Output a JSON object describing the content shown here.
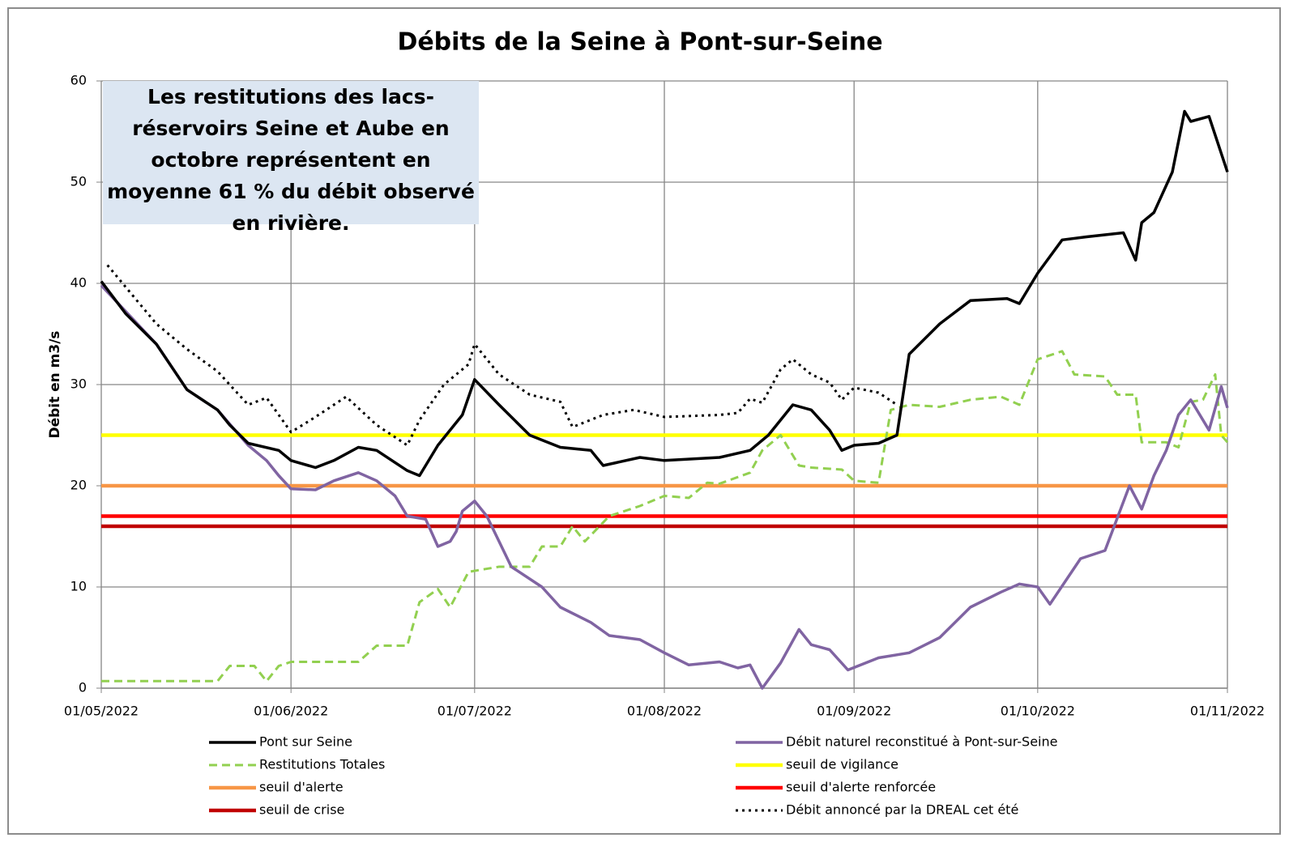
{
  "chart_data": {
    "type": "line",
    "title": "Débits de la Seine à Pont-sur-Seine",
    "y_label": "Débit en m3/s",
    "annotation": "Les restitutions des lacs-réservoirs Seine et Aube en octobre représentent en moyenne 61 % du débit observé en rivière.",
    "xlim": [
      "2022-05-01",
      "2022-11-01"
    ],
    "xticks": [
      {
        "value": "2022-05-01",
        "label": "01/05/2022"
      },
      {
        "value": "2022-06-01",
        "label": "01/06/2022"
      },
      {
        "value": "2022-07-01",
        "label": "01/07/2022"
      },
      {
        "value": "2022-08-01",
        "label": "01/08/2022"
      },
      {
        "value": "2022-09-01",
        "label": "01/09/2022"
      },
      {
        "value": "2022-10-01",
        "label": "01/10/2022"
      },
      {
        "value": "2022-11-01",
        "label": "01/11/2022"
      }
    ],
    "ylim": [
      0,
      60
    ],
    "yticks": [
      0,
      10,
      20,
      30,
      40,
      50,
      60
    ],
    "grid": true,
    "legend": "bottom",
    "series": [
      {
        "name": "Pont sur Seine",
        "color": "#000000",
        "dash": "solid",
        "x": [
          "2022-05-01",
          "2022-05-05",
          "2022-05-10",
          "2022-05-15",
          "2022-05-20",
          "2022-05-22",
          "2022-05-25",
          "2022-05-30",
          "2022-06-01",
          "2022-06-05",
          "2022-06-08",
          "2022-06-12",
          "2022-06-15",
          "2022-06-20",
          "2022-06-22",
          "2022-06-25",
          "2022-06-29",
          "2022-07-01",
          "2022-07-05",
          "2022-07-10",
          "2022-07-15",
          "2022-07-20",
          "2022-07-22",
          "2022-07-28",
          "2022-08-01",
          "2022-08-10",
          "2022-08-15",
          "2022-08-18",
          "2022-08-22",
          "2022-08-25",
          "2022-08-28",
          "2022-08-30",
          "2022-09-01",
          "2022-09-05",
          "2022-09-08",
          "2022-09-10",
          "2022-09-15",
          "2022-09-20",
          "2022-09-26",
          "2022-09-28",
          "2022-10-01",
          "2022-10-05",
          "2022-10-09",
          "2022-10-15",
          "2022-10-17",
          "2022-10-18",
          "2022-10-20",
          "2022-10-23",
          "2022-10-25",
          "2022-10-26",
          "2022-10-29",
          "2022-11-01"
        ],
        "values": [
          40.2,
          37,
          34,
          29.5,
          27.5,
          26,
          24.2,
          23.5,
          22.5,
          21.8,
          22.5,
          23.8,
          23.5,
          21.5,
          21,
          24,
          27,
          30.5,
          28,
          25,
          23.8,
          23.5,
          22,
          22.8,
          22.5,
          22.8,
          23.5,
          25,
          28,
          27.5,
          25.5,
          23.5,
          24,
          24.2,
          25,
          33,
          36,
          38.3,
          38.5,
          38,
          41,
          44.3,
          44.6,
          45,
          42.3,
          46,
          47,
          51,
          57,
          56,
          56.5,
          51
        ]
      },
      {
        "name": "Débit naturel reconstitué à Pont-sur-Seine",
        "color": "#8064a2",
        "dash": "solid",
        "x": [
          "2022-05-01",
          "2022-05-10",
          "2022-05-15",
          "2022-05-20",
          "2022-05-25",
          "2022-05-28",
          "2022-05-30",
          "2022-06-01",
          "2022-06-05",
          "2022-06-08",
          "2022-06-12",
          "2022-06-15",
          "2022-06-18",
          "2022-06-20",
          "2022-06-23",
          "2022-06-25",
          "2022-06-27",
          "2022-06-28",
          "2022-06-29",
          "2022-07-01",
          "2022-07-03",
          "2022-07-05",
          "2022-07-07",
          "2022-07-12",
          "2022-07-15",
          "2022-07-20",
          "2022-07-23",
          "2022-07-28",
          "2022-08-01",
          "2022-08-05",
          "2022-08-10",
          "2022-08-13",
          "2022-08-15",
          "2022-08-17",
          "2022-08-20",
          "2022-08-23",
          "2022-08-25",
          "2022-08-28",
          "2022-08-31",
          "2022-09-05",
          "2022-09-10",
          "2022-09-15",
          "2022-09-20",
          "2022-09-25",
          "2022-09-28",
          "2022-10-01",
          "2022-10-03",
          "2022-10-08",
          "2022-10-12",
          "2022-10-16",
          "2022-10-18",
          "2022-10-20",
          "2022-10-22",
          "2022-10-24",
          "2022-10-26",
          "2022-10-29",
          "2022-10-31",
          "2022-11-01"
        ],
        "values": [
          39.8,
          34,
          29.5,
          27.5,
          24,
          22.5,
          21,
          19.7,
          19.6,
          20.5,
          21.3,
          20.5,
          19,
          17,
          16.7,
          14,
          14.5,
          15.5,
          17.5,
          18.5,
          17,
          14.5,
          12,
          10,
          8,
          6.5,
          5.2,
          4.8,
          3.5,
          2.3,
          2.6,
          2,
          2.3,
          0,
          2.5,
          5.8,
          4.3,
          3.8,
          1.8,
          3,
          3.5,
          5,
          8,
          9.5,
          10.3,
          10,
          8.3,
          12.8,
          13.6,
          20,
          17.7,
          21,
          23.5,
          27,
          28.5,
          25.5,
          29.8,
          27.7
        ]
      },
      {
        "name": "Restitutions Totales",
        "color": "#92d050",
        "dash": "dashed",
        "x": [
          "2022-05-01",
          "2022-05-20",
          "2022-05-22",
          "2022-05-26",
          "2022-05-28",
          "2022-05-30",
          "2022-06-01",
          "2022-06-12",
          "2022-06-15",
          "2022-06-20",
          "2022-06-22",
          "2022-06-25",
          "2022-06-27",
          "2022-06-30",
          "2022-07-05",
          "2022-07-10",
          "2022-07-12",
          "2022-07-15",
          "2022-07-17",
          "2022-07-19",
          "2022-07-23",
          "2022-07-28",
          "2022-08-01",
          "2022-08-05",
          "2022-08-08",
          "2022-08-10",
          "2022-08-15",
          "2022-08-17",
          "2022-08-20",
          "2022-08-23",
          "2022-08-25",
          "2022-08-30",
          "2022-09-01",
          "2022-09-05",
          "2022-09-07",
          "2022-09-10",
          "2022-09-15",
          "2022-09-20",
          "2022-09-25",
          "2022-09-28",
          "2022-10-01",
          "2022-10-05",
          "2022-10-07",
          "2022-10-12",
          "2022-10-14",
          "2022-10-17",
          "2022-10-18",
          "2022-10-22",
          "2022-10-24",
          "2022-10-26",
          "2022-10-28",
          "2022-10-30",
          "2022-10-31",
          "2022-11-01"
        ],
        "values": [
          0.7,
          0.7,
          2.2,
          2.2,
          0.7,
          2.2,
          2.6,
          2.6,
          4.2,
          4.2,
          8.5,
          9.8,
          8,
          11.5,
          12,
          12,
          14,
          14,
          16,
          14.5,
          17,
          18,
          19,
          18.8,
          20.3,
          20.2,
          21.3,
          23.5,
          25,
          22,
          21.8,
          21.6,
          20.5,
          20.3,
          27.5,
          28,
          27.8,
          28.5,
          28.8,
          28,
          32.5,
          33.3,
          31,
          30.8,
          29,
          29,
          24.3,
          24.3,
          23.8,
          28.3,
          28.5,
          31,
          25,
          24.3
        ]
      },
      {
        "name": "seuil de vigilance",
        "color": "#ffff00",
        "dash": "thick",
        "x": [
          "2022-05-01",
          "2022-11-01"
        ],
        "values": [
          25,
          25
        ]
      },
      {
        "name": "seuil d'alerte",
        "color": "#f79646",
        "dash": "thick",
        "x": [
          "2022-05-01",
          "2022-11-01"
        ],
        "values": [
          20,
          20
        ]
      },
      {
        "name": "seuil d'alerte renforcée",
        "color": "#ff0000",
        "dash": "thick",
        "x": [
          "2022-05-01",
          "2022-11-01"
        ],
        "values": [
          17,
          17
        ]
      },
      {
        "name": "seuil de crise",
        "color": "#c00000",
        "dash": "thick",
        "x": [
          "2022-05-01",
          "2022-11-01"
        ],
        "values": [
          16,
          16
        ]
      },
      {
        "name": "Débit annoncé par la DREAL cet été",
        "color": "#000000",
        "dash": "dotted",
        "x": [
          "2022-05-02",
          "2022-05-10",
          "2022-05-15",
          "2022-05-20",
          "2022-05-25",
          "2022-05-28",
          "2022-06-01",
          "2022-06-05",
          "2022-06-10",
          "2022-06-15",
          "2022-06-20",
          "2022-06-22",
          "2022-06-26",
          "2022-06-30",
          "2022-07-01",
          "2022-07-05",
          "2022-07-10",
          "2022-07-15",
          "2022-07-17",
          "2022-07-22",
          "2022-07-27",
          "2022-08-01",
          "2022-08-10",
          "2022-08-13",
          "2022-08-15",
          "2022-08-17",
          "2022-08-20",
          "2022-08-22",
          "2022-08-25",
          "2022-08-28",
          "2022-08-30",
          "2022-09-01",
          "2022-09-05",
          "2022-09-08"
        ],
        "values": [
          41.8,
          36,
          33.5,
          31.3,
          28,
          28.7,
          25.3,
          26.8,
          28.8,
          26,
          24,
          26.5,
          30,
          32,
          34,
          31,
          29,
          28.3,
          25.8,
          27,
          27.5,
          26.8,
          27,
          27.2,
          28.6,
          28.2,
          31.5,
          32.5,
          31,
          30.2,
          28.5,
          29.7,
          29.2,
          28
        ]
      }
    ]
  }
}
